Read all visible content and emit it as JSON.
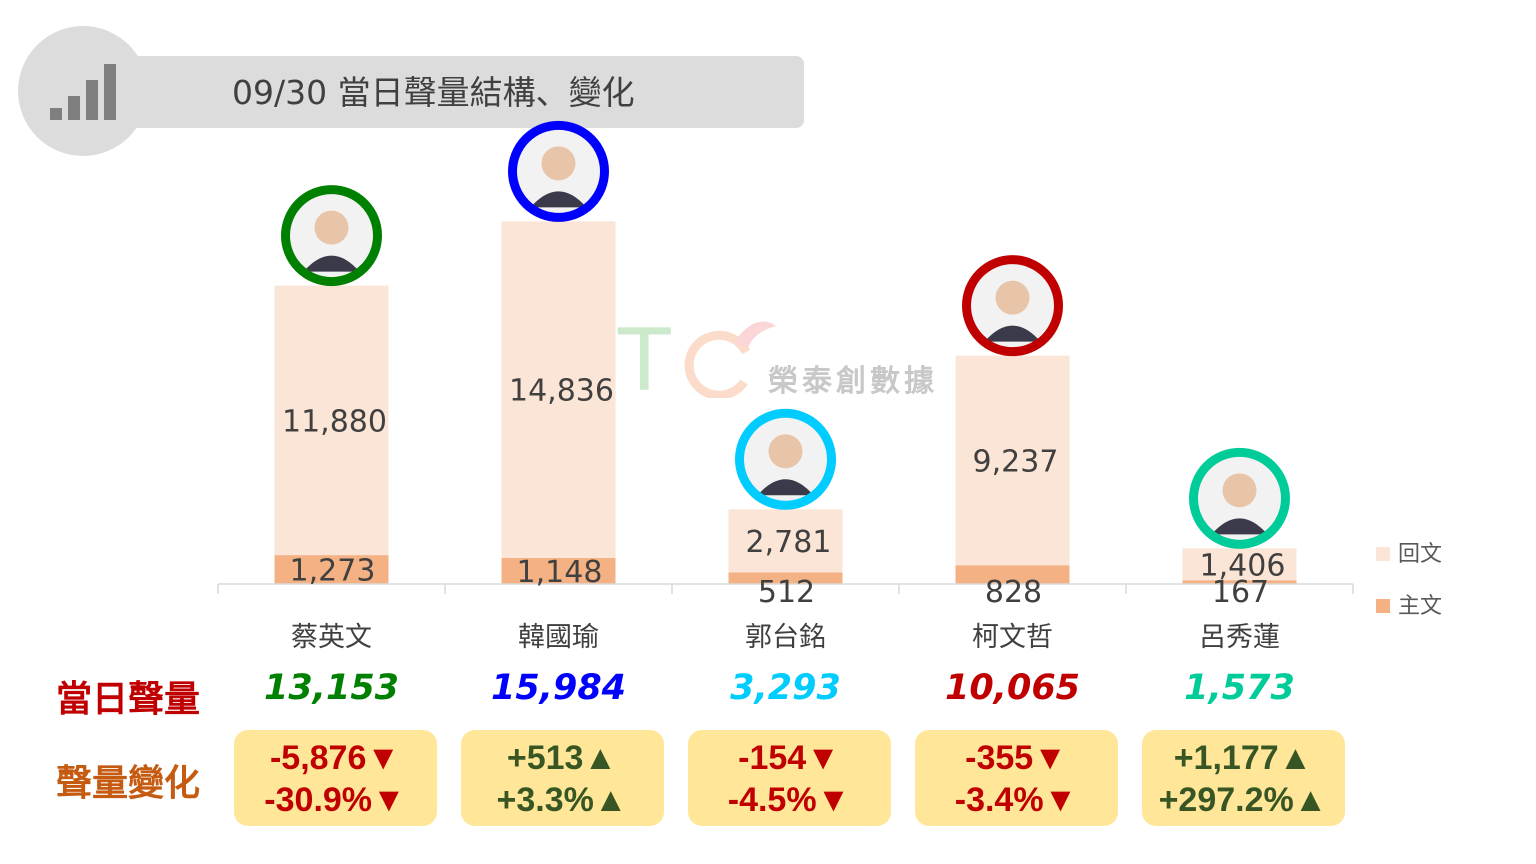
{
  "title": "09/30 當日聲量結構、變化",
  "icons": {
    "title": "bar-chart-icon"
  },
  "chart_data": {
    "type": "bar",
    "stacked": true,
    "categories": [
      "蔡英文",
      "韓國瑜",
      "郭台銘",
      "柯文哲",
      "呂秀蓮"
    ],
    "series": [
      {
        "name": "主文",
        "color": "#f4b183",
        "values": [
          1273,
          1148,
          512,
          828,
          167
        ]
      },
      {
        "name": "回文",
        "color": "#fbe5d6",
        "values": [
          11880,
          14836,
          2781,
          9237,
          1406
        ]
      }
    ],
    "value_labels": {
      "主文": [
        "1,273",
        "1,148",
        "512",
        "828",
        "167"
      ],
      "回文": [
        "11,880",
        "14,836",
        "2,781",
        "9,237",
        "1,406"
      ]
    },
    "ylim": [
      0,
      16000
    ],
    "grid": false,
    "legend": "right",
    "candidate_colors": [
      "#008000",
      "#0000ff",
      "#00ccff",
      "#c00000",
      "#00cc99"
    ]
  },
  "rows": {
    "total_label": "當日聲量",
    "change_label": "聲量變化"
  },
  "totals": [
    "13,153",
    "15,984",
    "3,293",
    "10,065",
    "1,573"
  ],
  "changes": [
    {
      "abs": "-5,876▼",
      "pct": "-30.9%▼",
      "direction": "down"
    },
    {
      "abs": "+513▲",
      "pct": "+3.3%▲",
      "direction": "up"
    },
    {
      "abs": "-154▼",
      "pct": "-4.5%▼",
      "direction": "down"
    },
    {
      "abs": "-355▼",
      "pct": "-3.4%▼",
      "direction": "down"
    },
    {
      "abs": "+1,177▲",
      "pct": "+297.2%▲",
      "direction": "up"
    }
  ],
  "watermark": {
    "logo": "TC",
    "text": "榮泰創數據"
  }
}
